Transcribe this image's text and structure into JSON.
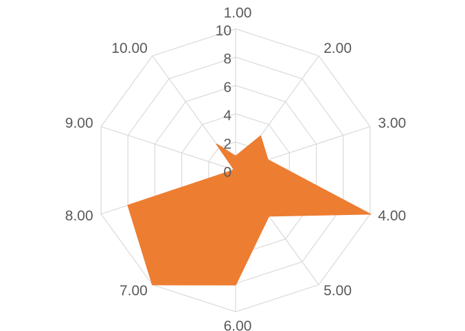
{
  "chart_data": {
    "type": "radar",
    "title": "",
    "categories": [
      "1.00",
      "2.00",
      "3.00",
      "4.00",
      "5.00",
      "6.00",
      "7.00",
      "8.00",
      "9.00",
      "10.00"
    ],
    "series": [
      {
        "values": [
          1,
          3,
          2.4,
          10,
          4,
          8.1,
          10,
          8,
          0.1,
          2.3
        ]
      }
    ],
    "r_ticks": [
      "0",
      "2",
      "4",
      "6",
      "8",
      "10"
    ],
    "r_range": [
      0,
      10
    ],
    "series_color": "#ED7D31",
    "grid_color": "#D9D9D9",
    "label_color": "#595959",
    "legend": "none",
    "grid": true
  }
}
